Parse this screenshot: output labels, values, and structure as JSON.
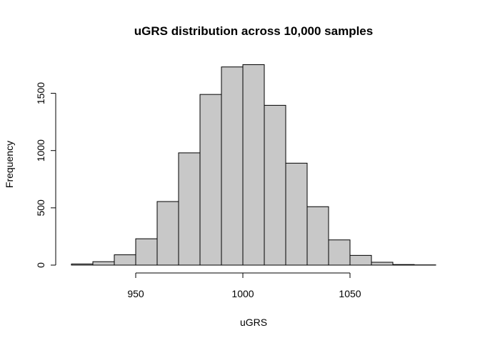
{
  "chart_data": {
    "type": "bar",
    "title": "uGRS distribution across 10,000 samples",
    "xlabel": "uGRS",
    "ylabel": "Frequency",
    "bin_edges": [
      920,
      930,
      940,
      950,
      960,
      970,
      980,
      990,
      1000,
      1010,
      1020,
      1030,
      1040,
      1050,
      1060,
      1070,
      1080,
      1090
    ],
    "values": [
      10,
      30,
      90,
      230,
      555,
      980,
      1490,
      1730,
      1750,
      1395,
      890,
      510,
      220,
      85,
      25,
      5,
      2
    ],
    "x_ticks": [
      950,
      1000,
      1050
    ],
    "y_ticks": [
      0,
      500,
      1000,
      1500
    ],
    "x_range": [
      920,
      1090
    ],
    "y_range": [
      0,
      1800
    ],
    "grid": false,
    "legend": "none",
    "bar_fill": "#c8c8c8",
    "bar_stroke": "#000000"
  }
}
